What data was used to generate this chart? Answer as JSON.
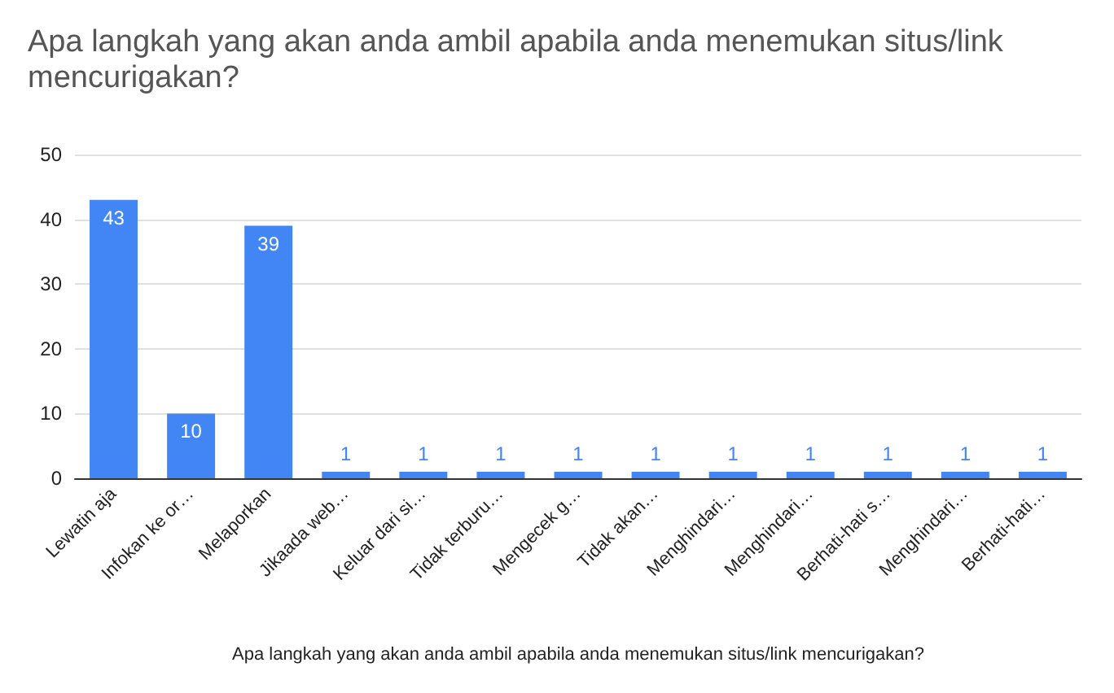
{
  "chart_data": {
    "type": "bar",
    "title": "Apa langkah yang akan anda ambil apabila anda menemukan situs/link mencurigakan?",
    "xlabel": "Apa langkah yang akan anda ambil apabila anda menemukan situs/link mencurigakan?",
    "categories": [
      "Lewatin aja",
      "Infokan ke or…",
      "Melaporkan",
      "Jikaada web…",
      "Keluar dari si…",
      "Tidak terburu…",
      "Mengecek g…",
      "Tidak akan…",
      "Menghindari…",
      "Menghindari…",
      "Berhati-hati s…",
      "Menghindari…",
      "Berhati-hati…"
    ],
    "values": [
      43,
      10,
      39,
      1,
      1,
      1,
      1,
      1,
      1,
      1,
      1,
      1,
      1
    ],
    "color": "#4285f4",
    "ylim": [
      0,
      50
    ],
    "yticks": [
      0,
      10,
      20,
      30,
      40,
      50
    ],
    "grid": "y",
    "data_labels": true
  }
}
